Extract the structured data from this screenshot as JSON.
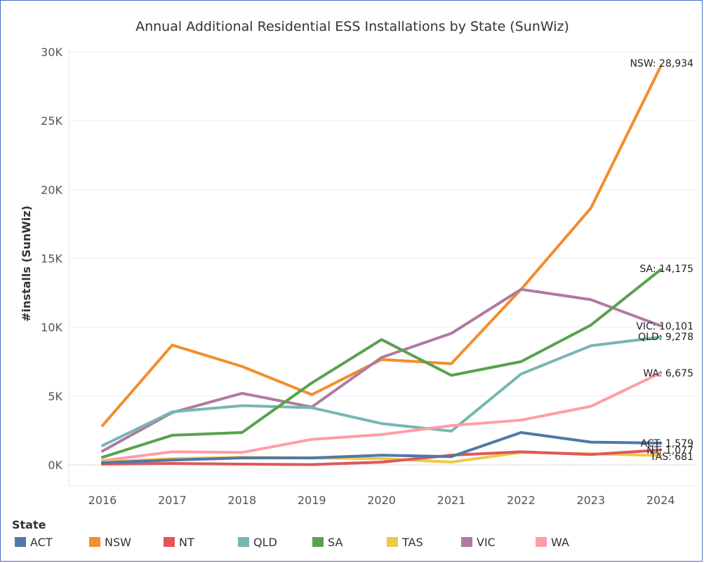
{
  "chart_data": {
    "type": "line",
    "title": "Annual Additional Residential ESS Installations by State (SunWiz)",
    "ylabel": "#installs (SunWiz)",
    "xlabel": "",
    "x": [
      "2016",
      "2017",
      "2018",
      "2019",
      "2020",
      "2021",
      "2022",
      "2023",
      "2024"
    ],
    "ylim": [
      0,
      30000
    ],
    "yticks": [
      0,
      5000,
      10000,
      15000,
      20000,
      25000,
      30000
    ],
    "ytick_labels": [
      "0K",
      "5K",
      "10K",
      "15K",
      "20K",
      "25K",
      "30K"
    ],
    "grid": true,
    "legend_title": "State",
    "legend_position": "bottom",
    "series": [
      {
        "name": "ACT",
        "color": "#4e79a7",
        "values": [
          150,
          350,
          500,
          500,
          700,
          600,
          2350,
          1650,
          1579
        ],
        "end_label": "ACT: 1,579"
      },
      {
        "name": "NSW",
        "color": "#f28e2b",
        "values": [
          2850,
          8700,
          7150,
          5100,
          7650,
          7350,
          12750,
          18650,
          28934
        ],
        "end_label": "NSW: 28,934"
      },
      {
        "name": "NT",
        "color": "#e15759",
        "values": [
          50,
          100,
          50,
          20,
          200,
          700,
          950,
          750,
          1077
        ],
        "end_label": "NT: 1,077"
      },
      {
        "name": "QLD",
        "color": "#76b7b2",
        "values": [
          1400,
          3850,
          4300,
          4150,
          3000,
          2450,
          6600,
          8650,
          9278
        ],
        "end_label": "QLD: 9,278"
      },
      {
        "name": "SA",
        "color": "#59a14f",
        "values": [
          550,
          2150,
          2350,
          5950,
          9100,
          6500,
          7500,
          10150,
          14175
        ],
        "end_label": "SA: 14,175"
      },
      {
        "name": "TAS",
        "color": "#edc948",
        "values": [
          200,
          450,
          550,
          500,
          450,
          200,
          900,
          800,
          681
        ],
        "end_label": "TAS: 681"
      },
      {
        "name": "VIC",
        "color": "#b07aa1",
        "values": [
          1000,
          3800,
          5200,
          4200,
          7800,
          9550,
          12750,
          12000,
          10101
        ],
        "end_label": "VIC: 10,101"
      },
      {
        "name": "WA",
        "color": "#ff9da7",
        "values": [
          300,
          950,
          900,
          1850,
          2200,
          2850,
          3250,
          4250,
          6675
        ],
        "end_label": "WA: 6,675"
      }
    ]
  }
}
